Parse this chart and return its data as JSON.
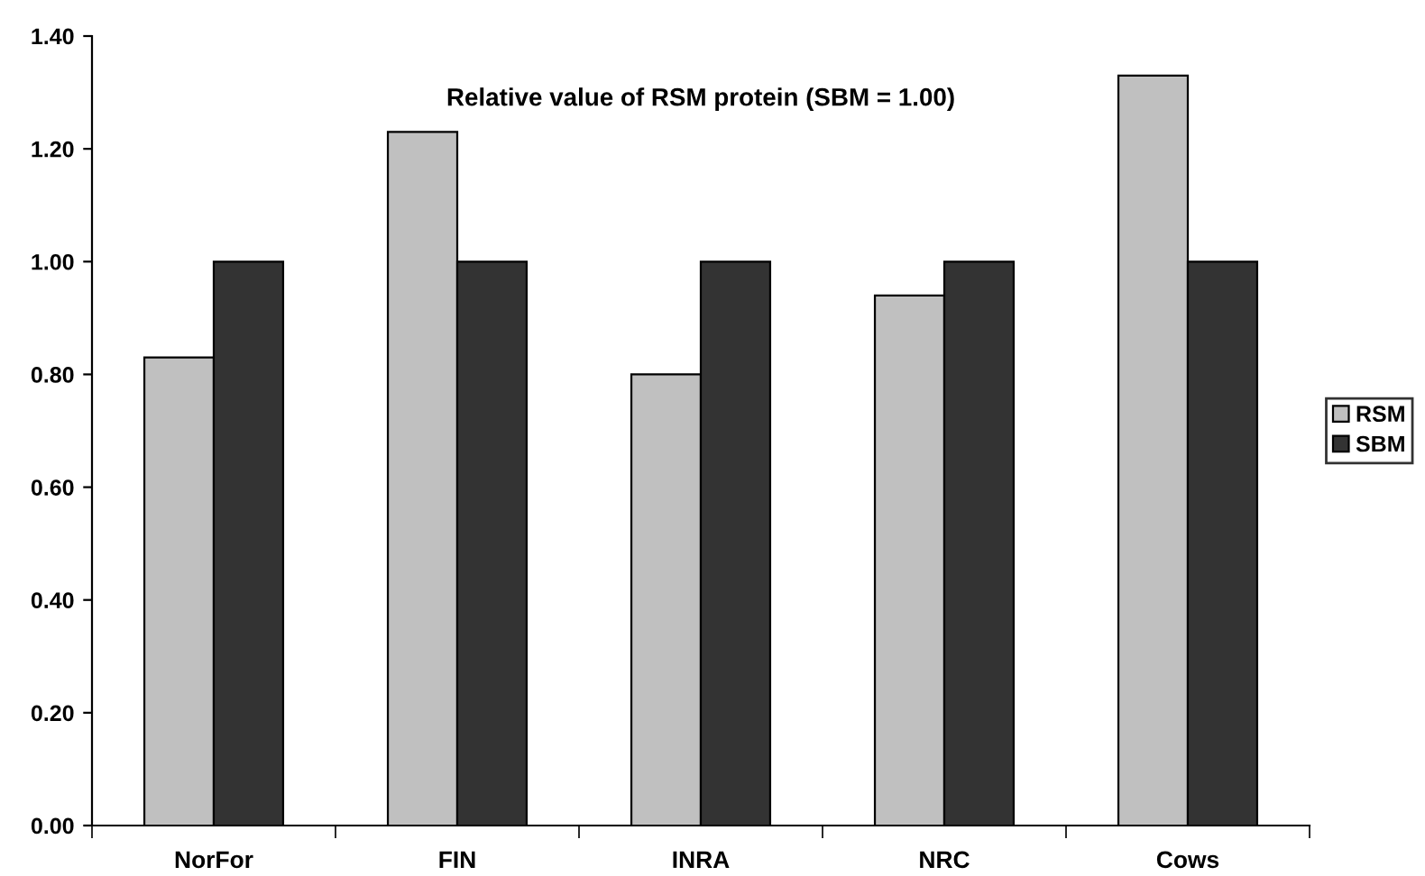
{
  "chart_data": {
    "type": "bar",
    "title": "Relative value of RSM protein (SBM = 1.00)",
    "categories": [
      "NorFor",
      "FIN",
      "INRA",
      "NRC",
      "Cows"
    ],
    "series": [
      {
        "name": "RSM",
        "color": "#c0c0c0",
        "values": [
          0.83,
          1.23,
          0.8,
          0.94,
          1.33
        ]
      },
      {
        "name": "SBM",
        "color": "#333333",
        "values": [
          1.0,
          1.0,
          1.0,
          1.0,
          1.0
        ]
      }
    ],
    "ylim": [
      0,
      1.4
    ],
    "yticks": [
      {
        "value": 0,
        "label": "0.00"
      },
      {
        "value": 0.2,
        "label": "0.20"
      },
      {
        "value": 0.4,
        "label": "0.40"
      },
      {
        "value": 0.6,
        "label": "0.60"
      },
      {
        "value": 0.8,
        "label": "0.80"
      },
      {
        "value": 1.0,
        "label": "1.00"
      },
      {
        "value": 1.2,
        "label": "1.20"
      },
      {
        "value": 1.4,
        "label": "1.40"
      }
    ],
    "grid": false,
    "legend": "right"
  }
}
